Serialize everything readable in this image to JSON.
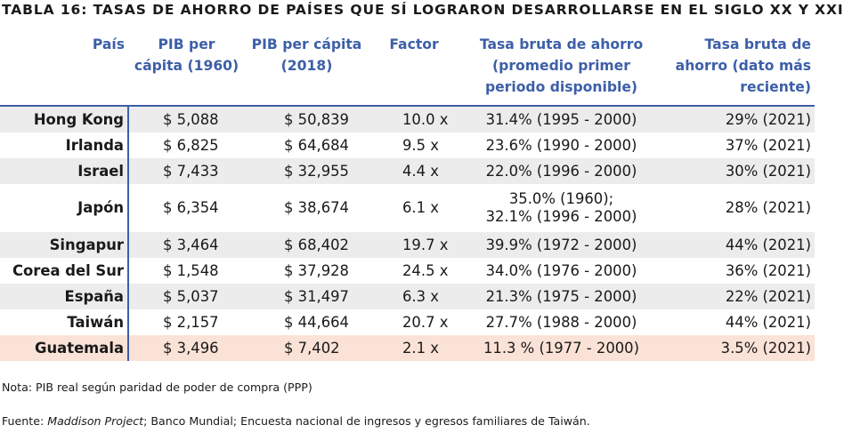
{
  "title": "TABLA 16: TASAS DE AHORRO DE PAÍSES QUE SÍ LOGRARON DESARROLLARSE EN EL SIGLO XX Y XXI",
  "headers": [
    "País",
    "PIB per cápita (1960)",
    "PIB per cápita (2018)",
    "Factor",
    "Tasa bruta de ahorro (promedio primer periodo disponible)",
    "Tasa bruta de ahorro (dato más reciente)"
  ],
  "rows": [
    {
      "pais": "Hong Kong",
      "pib1960": "$ 5,088",
      "pib2018": "$ 50,839",
      "factor": "10.0 x",
      "ahorro1": "31.4% (1995 - 2000)",
      "ahorro2": "29% (2021)"
    },
    {
      "pais": "Irlanda",
      "pib1960": "$ 6,825",
      "pib2018": "$ 64,684",
      "factor": "9.5 x",
      "ahorro1": "23.6% (1990 - 2000)",
      "ahorro2": "37% (2021)"
    },
    {
      "pais": "Israel",
      "pib1960": "$ 7,433",
      "pib2018": "$ 32,955",
      "factor": "4.4 x",
      "ahorro1": "22.0% (1996 - 2000)",
      "ahorro2": "30% (2021)"
    },
    {
      "pais": "Japón",
      "pib1960": "$ 6,354",
      "pib2018": "$ 38,674",
      "factor": "6.1 x",
      "ahorro1_line1": "35.0% (1960);",
      "ahorro1_line2": "32.1% (1996 - 2000)",
      "ahorro2": "28% (2021)"
    },
    {
      "pais": "Singapur",
      "pib1960": "$ 3,464",
      "pib2018": "$ 68,402",
      "factor": "19.7 x",
      "ahorro1": "39.9% (1972 - 2000)",
      "ahorro2": "44% (2021)"
    },
    {
      "pais": "Corea del Sur",
      "pib1960": "$ 1,548",
      "pib2018": "$ 37,928",
      "factor": "24.5 x",
      "ahorro1": "34.0% (1976 - 2000)",
      "ahorro2": "36% (2021)"
    },
    {
      "pais": "España",
      "pib1960": "$ 5,037",
      "pib2018": "$ 31,497",
      "factor": "6.3 x",
      "ahorro1": "21.3% (1975 - 2000)",
      "ahorro2": "22% (2021)"
    },
    {
      "pais": "Taiwán",
      "pib1960": "$ 2,157",
      "pib2018": "$ 44,664",
      "factor": "20.7 x",
      "ahorro1": "27.7% (1988 - 2000)",
      "ahorro2": "44% (2021)"
    },
    {
      "pais": "Guatemala",
      "pib1960": "$ 3,496",
      "pib2018": "$ 7,402",
      "factor": "2.1 x",
      "ahorro1": "11.3 % (1977 - 2000)",
      "ahorro2": "3.5% (2021)"
    }
  ],
  "colors": {
    "header_blue": "#3d5fa8",
    "stripe_gray": "#ececec",
    "highlight_peach": "#fbe2d6"
  },
  "note": "Nota: PIB real según paridad de poder de compra (PPP)",
  "source_prefix": "Fuente: ",
  "source_italic": "Maddison Project",
  "source_rest": "; Banco Mundial; Encuesta nacional de ingresos y egresos familiares de Taiwán."
}
